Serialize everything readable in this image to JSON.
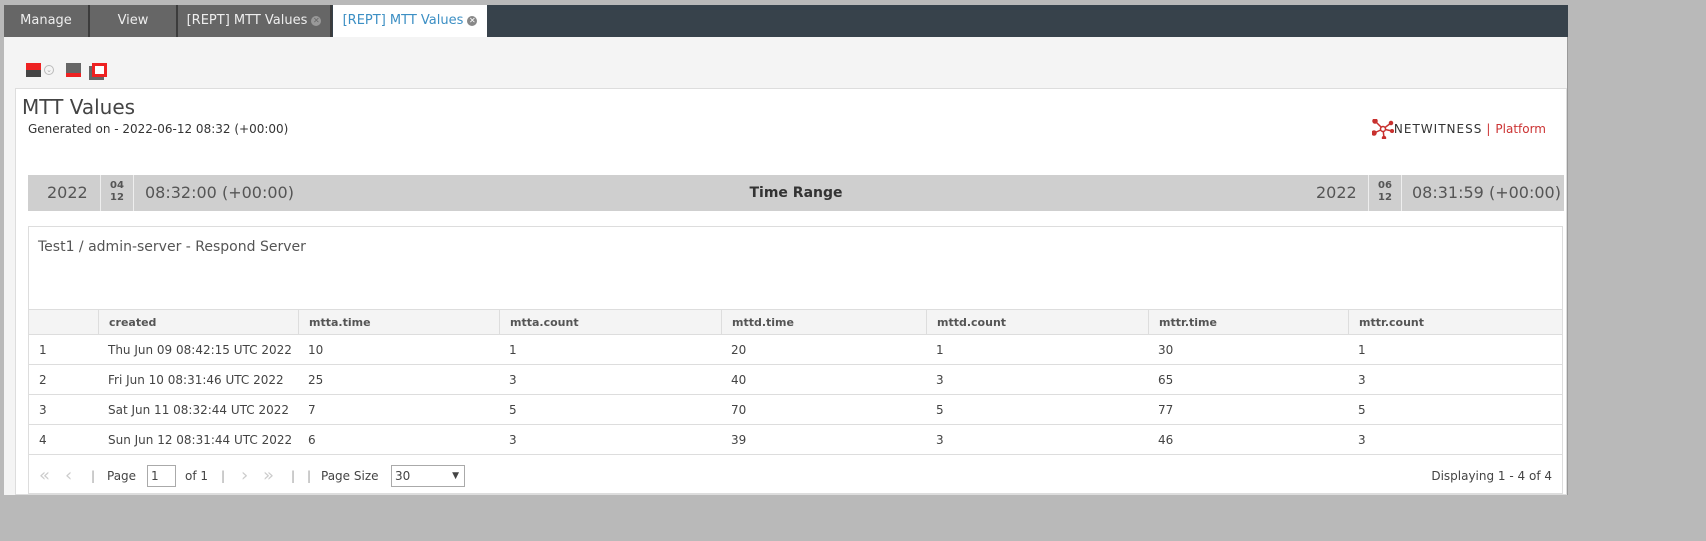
{
  "tabs": [
    {
      "label": "Manage"
    },
    {
      "label": "View"
    },
    {
      "label": "[REPT] MTT Values",
      "closable": true
    },
    {
      "label": "[REPT] MTT Values",
      "closable": true,
      "active": true
    }
  ],
  "toolbar": {
    "icons": [
      "save-icon",
      "dropdown-icon",
      "export-icon",
      "window-icon"
    ]
  },
  "report": {
    "title": "MTT Values",
    "generated": "Generated on - 2022-06-12 08:32 (+00:00)",
    "logo": {
      "brand": "NETWITNESS",
      "product": "Platform",
      "color": "#c8312f"
    },
    "time_range": {
      "label": "Time Range",
      "start": {
        "year": "2022",
        "month": "04",
        "day": "12",
        "time": "08:32:00 (+00:00)"
      },
      "end": {
        "year": "2022",
        "month": "06",
        "day": "12",
        "time": "08:31:59 (+00:00)"
      }
    },
    "subtitle": "Test1 / admin-server - Respond Server",
    "columns": [
      "",
      "created",
      "mtta.time",
      "mtta.count",
      "mttd.time",
      "mttd.count",
      "mttr.time",
      "mttr.count"
    ],
    "rows": [
      [
        "1",
        "Thu Jun 09 08:42:15 UTC 2022",
        "10",
        "1",
        "20",
        "1",
        "30",
        "1"
      ],
      [
        "2",
        "Fri Jun 10 08:31:46 UTC 2022",
        "25",
        "3",
        "40",
        "3",
        "65",
        "3"
      ],
      [
        "3",
        "Sat Jun 11 08:32:44 UTC 2022",
        "7",
        "5",
        "70",
        "5",
        "77",
        "5"
      ],
      [
        "4",
        "Sun Jun 12 08:31:44 UTC 2022",
        "6",
        "3",
        "39",
        "3",
        "46",
        "3"
      ]
    ],
    "pager": {
      "page_label": "Page",
      "page": "1",
      "of": "of 1",
      "page_size_label": "Page Size",
      "page_size": "30",
      "displaying": "Displaying 1 - 4 of 4"
    }
  }
}
